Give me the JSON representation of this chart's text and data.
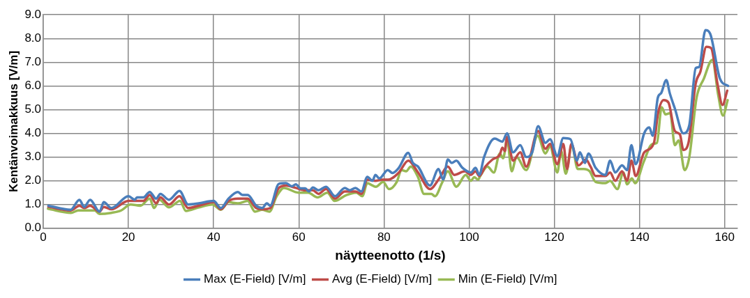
{
  "chart_data": {
    "type": "line",
    "xlabel": "näytteenotto (1/s)",
    "ylabel": "Kentänvoimakkuus [V/m]",
    "xlim": [
      0,
      163
    ],
    "xticks": [
      0,
      20,
      40,
      60,
      80,
      100,
      120,
      140,
      160
    ],
    "ylim": [
      0,
      9
    ],
    "yticks": [
      {
        "value": 0,
        "label": "0.0"
      },
      {
        "value": 1,
        "label": "1.0"
      },
      {
        "value": 2,
        "label": "2.0"
      },
      {
        "value": 3,
        "label": "3.0"
      },
      {
        "value": 4,
        "label": "4.0"
      },
      {
        "value": 5,
        "label": "5.0"
      },
      {
        "value": 6,
        "label": "6.0"
      },
      {
        "value": 7,
        "label": "7.0"
      },
      {
        "value": 8,
        "label": "8.0"
      },
      {
        "value": 9,
        "label": "9.0"
      }
    ],
    "grid": true,
    "legend": "bottom",
    "marker": "none",
    "line_style": "solid",
    "series": [
      {
        "name": "Max (E-Field) [V/m]",
        "color": "#4a7ebb",
        "x": [
          1.2,
          6.4,
          8.5,
          9.6,
          11,
          13.2,
          14.2,
          16,
          20,
          21.5,
          22,
          23.5,
          25,
          26.5,
          27.5,
          29.5,
          32,
          34,
          36.5,
          40,
          41.7,
          43.5,
          45.7,
          46.8,
          48,
          50,
          51.4,
          52.5,
          53.3,
          55.3,
          57,
          58.4,
          59.3,
          60.4,
          61.5,
          62.4,
          63.3,
          64.6,
          66.4,
          68.5,
          70.8,
          72,
          73.3,
          74.7,
          76.1,
          77.3,
          78,
          78.9,
          80.9,
          82,
          83.5,
          85.7,
          86.8,
          88,
          90.8,
          92.8,
          93.9,
          95,
          95.9,
          97,
          98.4,
          100.4,
          101.5,
          102.4,
          103.5,
          106,
          107.8,
          108.9,
          110.3,
          112,
          113.4,
          114.8,
          116.2,
          117.9,
          119,
          120.7,
          122.1,
          123.8,
          125.3,
          126,
          127.2,
          128,
          129.7,
          132,
          133.1,
          134.3,
          135.9,
          137.1,
          138.1,
          139.1,
          141.1,
          142.3,
          143.1,
          144.3,
          145.1,
          146.3,
          147.1,
          148.3,
          150.3,
          151.7,
          153.2,
          154,
          155.5,
          156.6,
          158.9,
          160.8
        ],
        "values": [
          0.95,
          0.78,
          1.2,
          0.9,
          1.2,
          0.7,
          1.1,
          0.85,
          1.35,
          1.2,
          1.3,
          1.3,
          1.53,
          1.25,
          1.45,
          1.2,
          1.57,
          1.0,
          1.05,
          1.15,
          0.85,
          1.25,
          1.53,
          1.4,
          1.4,
          0.95,
          0.85,
          1.05,
          0.95,
          1.87,
          1.9,
          1.77,
          1.85,
          1.68,
          1.68,
          1.55,
          1.72,
          1.6,
          1.75,
          1.35,
          1.7,
          1.6,
          1.7,
          1.55,
          2.17,
          2.0,
          2.25,
          2.1,
          2.45,
          2.33,
          2.55,
          3.18,
          2.75,
          2.6,
          1.8,
          2.5,
          2.05,
          2.9,
          2.75,
          2.85,
          2.55,
          2.35,
          2.55,
          2.25,
          3.0,
          3.78,
          3.65,
          4.0,
          3.2,
          3.5,
          3.0,
          3.2,
          4.3,
          3.6,
          3.75,
          3.05,
          3.8,
          3.75,
          2.85,
          3.2,
          2.75,
          3.15,
          2.55,
          2.25,
          2.85,
          2.35,
          2.65,
          2.45,
          3.5,
          2.7,
          4.0,
          4.25,
          3.9,
          5.5,
          5.7,
          6.25,
          5.7,
          5.05,
          4.0,
          4.35,
          6.75,
          6.8,
          8.35,
          8.2,
          6.3,
          6.0
        ]
      },
      {
        "name": "Avg (E-Field) [V/m]",
        "color": "#be4b48",
        "x": [
          1.2,
          6.4,
          8.5,
          9.6,
          11,
          13.2,
          14.2,
          16,
          20,
          23.5,
          25,
          26.5,
          27.5,
          29.5,
          32,
          34,
          36.5,
          40,
          41.7,
          43.5,
          45.7,
          48,
          50,
          51.4,
          53.3,
          55.3,
          57,
          59.3,
          61.5,
          63.3,
          64.6,
          66.4,
          68.5,
          70.8,
          73.3,
          74.7,
          76.1,
          78,
          79.5,
          81,
          83.5,
          85.7,
          88,
          90.8,
          93,
          95,
          96.5,
          99,
          100.4,
          101.5,
          102.4,
          103.8,
          105.5,
          107.2,
          107.8,
          108.4,
          108.9,
          110.3,
          112,
          113.4,
          116.2,
          117.9,
          119,
          120.7,
          122.1,
          123,
          124,
          125.7,
          127.4,
          128.5,
          129.7,
          132,
          133.1,
          134.3,
          135.9,
          137.1,
          138.1,
          139.1,
          141.1,
          143.4,
          144.3,
          145.7,
          146.8,
          148.3,
          149.5,
          150.3,
          151.5,
          153.2,
          154.3,
          155.7,
          156.8,
          158.3,
          159.5,
          160.6
        ],
        "values": [
          0.9,
          0.75,
          0.95,
          0.85,
          0.95,
          0.7,
          0.9,
          0.8,
          1.15,
          1.15,
          1.4,
          1.05,
          1.3,
          1.0,
          1.35,
          0.85,
          0.95,
          1.1,
          0.8,
          1.15,
          1.25,
          1.25,
          0.85,
          0.8,
          0.85,
          1.7,
          1.8,
          1.7,
          1.6,
          1.6,
          1.45,
          1.65,
          1.25,
          1.55,
          1.55,
          1.45,
          2.05,
          2.0,
          2.05,
          2.05,
          2.35,
          2.85,
          2.35,
          1.65,
          2.1,
          2.6,
          2.25,
          2.4,
          2.25,
          2.4,
          2.2,
          2.6,
          2.9,
          3.1,
          3.4,
          3.25,
          3.85,
          2.85,
          3.2,
          2.6,
          4.1,
          3.35,
          3.55,
          2.7,
          3.55,
          2.5,
          3.55,
          2.65,
          2.9,
          2.6,
          2.2,
          2.2,
          2.35,
          2.0,
          2.4,
          2.0,
          2.85,
          2.2,
          3.2,
          3.6,
          4.8,
          5.4,
          5.3,
          4.1,
          3.95,
          3.3,
          3.6,
          6.1,
          6.6,
          7.65,
          7.6,
          6.1,
          5.2,
          5.8
        ]
      },
      {
        "name": "Min (E-Field) [V/m]",
        "color": "#98b954",
        "x": [
          1.1,
          6.5,
          8.2,
          12.1,
          13.2,
          16,
          18.3,
          20.5,
          22.8,
          25,
          26,
          27.3,
          29.5,
          32.1,
          33.5,
          36.4,
          39.7,
          41.7,
          43.5,
          45.7,
          48,
          49.7,
          51.4,
          53.1,
          54.8,
          56.5,
          59.9,
          62.2,
          64.4,
          66.7,
          68.4,
          71.2,
          73.5,
          74.9,
          76.1,
          77.3,
          78.1,
          79.8,
          81.2,
          83,
          84.1,
          85.2,
          86.3,
          88,
          89.4,
          91.1,
          92,
          93.6,
          95,
          97,
          99.2,
          100.4,
          101.2,
          102.1,
          102.6,
          104.3,
          105.8,
          107.2,
          108,
          108.9,
          110,
          111.1,
          113.4,
          116.1,
          117.9,
          119,
          120.7,
          121.6,
          122.7,
          124.1,
          125.5,
          126.9,
          128.3,
          129.7,
          132,
          133.1,
          134.8,
          136.2,
          137.1,
          138.2,
          139,
          141,
          143,
          144.1,
          145.2,
          146.1,
          147.2,
          148.3,
          149.2,
          150.6,
          151.7,
          153.4,
          155.1,
          157.1,
          158.5,
          159.6,
          160.7
        ],
        "values": [
          0.82,
          0.65,
          0.75,
          0.75,
          0.6,
          0.65,
          0.75,
          1.0,
          0.95,
          1.25,
          0.85,
          1.2,
          0.88,
          1.15,
          0.73,
          0.87,
          1.0,
          0.78,
          1.1,
          1.05,
          1.15,
          0.7,
          0.78,
          0.7,
          1.35,
          1.7,
          1.5,
          1.5,
          1.3,
          1.5,
          1.15,
          1.4,
          1.5,
          1.35,
          1.9,
          1.8,
          1.75,
          1.95,
          1.65,
          1.95,
          2.45,
          2.4,
          2.6,
          2.15,
          1.45,
          1.45,
          1.35,
          1.9,
          2.4,
          1.75,
          2.25,
          2.0,
          2.15,
          2.05,
          2.2,
          2.6,
          2.35,
          3.15,
          2.95,
          3.75,
          2.4,
          3.0,
          2.45,
          3.9,
          3.15,
          3.45,
          2.35,
          3.25,
          2.3,
          3.5,
          2.5,
          2.5,
          2.4,
          1.95,
          1.9,
          2.0,
          1.65,
          2.35,
          1.85,
          2.1,
          1.9,
          2.8,
          3.55,
          3.6,
          5.1,
          4.8,
          4.85,
          3.5,
          3.7,
          2.45,
          3.0,
          5.5,
          6.3,
          7.1,
          5.6,
          4.75,
          5.4
        ]
      }
    ]
  }
}
